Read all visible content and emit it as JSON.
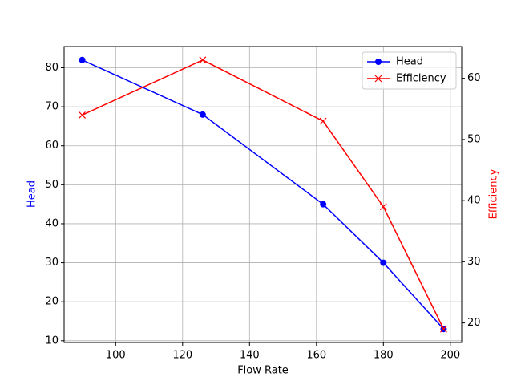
{
  "chart_data": {
    "type": "line",
    "x_label": "Flow Rate",
    "y_label": "Head",
    "y2_label": "Efficiency",
    "x": [
      90,
      126,
      162,
      180,
      198
    ],
    "series": [
      {
        "name": "Head",
        "color": "#0000ff",
        "marker": "o",
        "values": [
          82,
          68,
          45,
          30,
          13
        ]
      },
      {
        "name": "Efficiency",
        "color": "#ff0000",
        "marker": "x",
        "axis": "y2",
        "values": [
          54,
          63,
          53,
          39,
          19
        ]
      }
    ],
    "xlim": [
      84.6,
      203.4
    ],
    "xticks": [
      100,
      120,
      140,
      160,
      180,
      200
    ],
    "ylim": [
      9.55,
      85.45
    ],
    "yticks": [
      10,
      20,
      30,
      40,
      50,
      60,
      70,
      80
    ],
    "y2lim": [
      16.8,
      65.2
    ],
    "y2ticks": [
      20,
      30,
      40,
      50,
      60
    ],
    "grid": true,
    "legend": "upper right"
  }
}
